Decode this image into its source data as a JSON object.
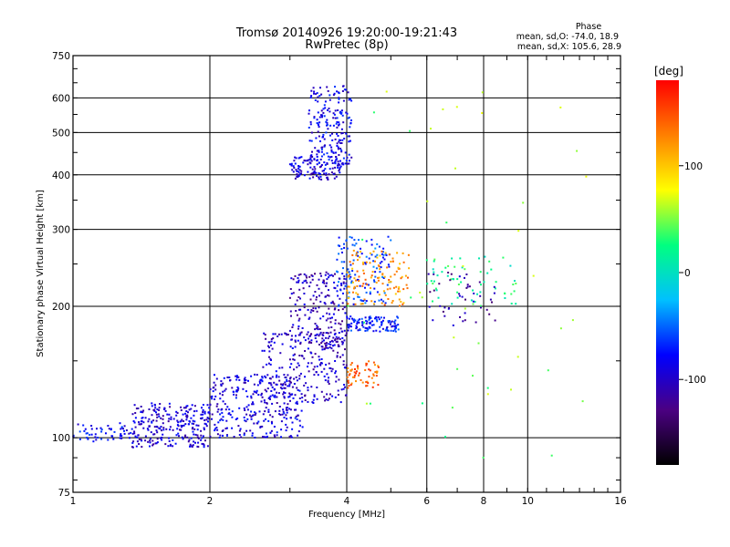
{
  "chart_data": {
    "type": "scatter",
    "title": "Tromsø 20140926 19:20:00-19:21:43",
    "subtitle": "RwPretec (8p)",
    "phase_legend": {
      "heading": "Phase",
      "line1": "mean, sd,O: -74.0, 18.9",
      "line2": "mean, sd,X: 105.6, 28.9"
    },
    "xlabel": "Frequency [MHz]",
    "ylabel": "Stationary phase Virtual Height [km]",
    "x_scale": "log",
    "y_scale": "log",
    "xlim": [
      1,
      16
    ],
    "ylim": [
      75,
      750
    ],
    "x_ticks": [
      1,
      2,
      4,
      6,
      8,
      10,
      16
    ],
    "y_ticks": [
      75,
      100,
      200,
      300,
      400,
      500,
      600,
      750
    ],
    "grid_x": [
      2,
      4,
      6,
      8,
      10
    ],
    "grid_y": [
      100,
      200,
      300,
      400,
      500,
      600
    ],
    "grid": true,
    "colorbar": {
      "label": "[deg]",
      "range": [
        -180,
        180
      ],
      "ticks": [
        100,
        0,
        -100
      ],
      "colors": [
        "#000000",
        "#4b0082",
        "#0000ff",
        "#00c0ff",
        "#00ff80",
        "#ffff00",
        "#ff8000",
        "#ff0000"
      ]
    },
    "clusters": [
      {
        "x": [
          1.0,
          1.35
        ],
        "y": [
          98,
          108
        ],
        "phase": -80,
        "count": 55
      },
      {
        "x": [
          1.35,
          2.0
        ],
        "y": [
          95,
          120
        ],
        "phase": -95,
        "count": 260
      },
      {
        "x": [
          2.0,
          3.2
        ],
        "y": [
          100,
          140
        ],
        "phase": -90,
        "count": 300
      },
      {
        "x": [
          2.6,
          4.0
        ],
        "y": [
          120,
          175
        ],
        "phase": -100,
        "count": 240
      },
      {
        "x": [
          3.0,
          4.0
        ],
        "y": [
          160,
          240
        ],
        "phase": -105,
        "count": 200
      },
      {
        "x": [
          3.0,
          3.9
        ],
        "y": [
          390,
          440
        ],
        "phase": -95,
        "count": 110
      },
      {
        "x": [
          3.3,
          4.1
        ],
        "y": [
          420,
          640
        ],
        "phase": -85,
        "count": 200
      },
      {
        "x": [
          3.8,
          5.0
        ],
        "y": [
          200,
          290
        ],
        "phase": -60,
        "count": 130
      },
      {
        "x": [
          4.0,
          5.2
        ],
        "y": [
          175,
          190
        ],
        "phase": -75,
        "count": 110
      },
      {
        "x": [
          4.0,
          5.5
        ],
        "y": [
          200,
          270
        ],
        "phase": 120,
        "count": 120
      },
      {
        "x": [
          4.0,
          4.7
        ],
        "y": [
          130,
          150
        ],
        "phase": 140,
        "count": 60
      },
      {
        "x": [
          6.0,
          9.5
        ],
        "y": [
          200,
          260
        ],
        "phase": 20,
        "count": 60
      },
      {
        "x": [
          6.0,
          8.5
        ],
        "y": [
          180,
          240
        ],
        "phase": -110,
        "count": 45
      },
      {
        "x": [
          4.0,
          14.0
        ],
        "y": [
          80,
          650
        ],
        "phase": 50,
        "count": 45
      }
    ]
  }
}
